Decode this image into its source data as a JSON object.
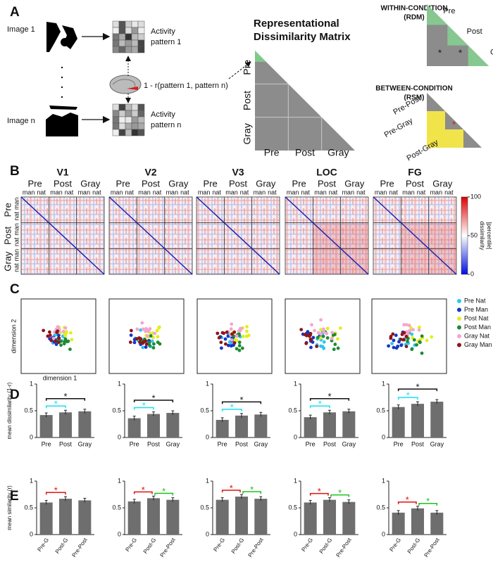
{
  "panel_labels": [
    "A",
    "B",
    "C",
    "D",
    "E"
  ],
  "schematic": {
    "image_1": "Image 1",
    "image_n": "Image n",
    "pattern_1": [
      "Activity",
      "pattern 1"
    ],
    "pattern_n": [
      "Activity",
      "pattern n"
    ],
    "correlation": "1 - r(pattern 1, pattern n)",
    "rdm_title": [
      "Representational",
      "Dissimilarity Matrix"
    ],
    "rdm_conditions": [
      "Pre",
      "Post",
      "Gray"
    ],
    "within": {
      "title": [
        "WITHIN-CONDITION",
        "(RDM)"
      ],
      "labels": [
        "Pre",
        "Post",
        "Gray"
      ],
      "stars": [
        "*",
        "*"
      ]
    },
    "between": {
      "title": [
        "BETWEEN-CONDITION",
        "(RSM)"
      ],
      "labels": [
        "Pre-Post",
        "Pre-Gray",
        "Post-Gray"
      ],
      "star": "*"
    }
  },
  "rdm": {
    "regions": [
      "V1",
      "V2",
      "V3",
      "LOC",
      "FG"
    ],
    "conditions": [
      "Pre",
      "Post",
      "Gray"
    ],
    "subconditions": [
      "man",
      "nat"
    ],
    "colorbar": {
      "lim": [
        0,
        100
      ],
      "ticks": [
        0,
        50,
        100
      ],
      "label": [
        "dissimilarity",
        "[percentile]"
      ]
    }
  },
  "mds": {
    "xlabel": "dimension 1",
    "ylabel": "dimension 2",
    "series": [
      {
        "name": "Pre Nat",
        "color": "#2ec4f2"
      },
      {
        "name": "Pre Man",
        "color": "#1436c8"
      },
      {
        "name": "Post Nat",
        "color": "#e3ee1c"
      },
      {
        "name": "Post Man",
        "color": "#1f8a33"
      },
      {
        "name": "Gray Nat",
        "color": "#f2a6cf"
      },
      {
        "name": "Gray Man",
        "color": "#8e1616"
      }
    ]
  },
  "chart_data": [
    {
      "type": "bar",
      "ylabel": "mean dissimilarity (1-r)",
      "categories": [
        "Pre",
        "Post",
        "Gray"
      ],
      "values": [
        0.42,
        0.47,
        0.49
      ],
      "color": "#6e6e6e",
      "ylim": [
        0,
        1
      ],
      "yticks": [
        0,
        0.5,
        1
      ],
      "significance": [
        {
          "label": "*",
          "between": [
            "Pre",
            "Post"
          ],
          "color": "#19e0f0"
        },
        {
          "label": "*",
          "between": [
            "Pre",
            "Gray"
          ],
          "color": "#111111"
        }
      ]
    },
    {
      "type": "bar",
      "categories": [
        "Pre",
        "Post",
        "Gray"
      ],
      "values": [
        0.36,
        0.44,
        0.46
      ],
      "color": "#6e6e6e",
      "ylim": [
        0,
        1
      ],
      "yticks": [
        0,
        0.5,
        1
      ],
      "significance": [
        {
          "label": "*",
          "between": [
            "Pre",
            "Post"
          ],
          "color": "#19e0f0"
        },
        {
          "label": "*",
          "between": [
            "Pre",
            "Gray"
          ],
          "color": "#111111"
        }
      ]
    },
    {
      "type": "bar",
      "categories": [
        "Pre",
        "Post",
        "Gray"
      ],
      "values": [
        0.33,
        0.41,
        0.43
      ],
      "color": "#6e6e6e",
      "ylim": [
        0,
        1
      ],
      "yticks": [
        0,
        0.5,
        1
      ],
      "significance": [
        {
          "label": "*",
          "between": [
            "Pre",
            "Post"
          ],
          "color": "#19e0f0"
        },
        {
          "label": "*",
          "between": [
            "Pre",
            "Gray"
          ],
          "color": "#111111"
        }
      ]
    },
    {
      "type": "bar",
      "categories": [
        "Pre",
        "Post",
        "Gray"
      ],
      "values": [
        0.38,
        0.47,
        0.49
      ],
      "color": "#6e6e6e",
      "ylim": [
        0,
        1
      ],
      "yticks": [
        0,
        0.5,
        1
      ],
      "significance": [
        {
          "label": "*",
          "between": [
            "Pre",
            "Post"
          ],
          "color": "#19e0f0"
        },
        {
          "label": "*",
          "between": [
            "Pre",
            "Gray"
          ],
          "color": "#111111"
        }
      ]
    },
    {
      "type": "bar",
      "categories": [
        "Pre",
        "Post",
        "Gray"
      ],
      "values": [
        0.57,
        0.63,
        0.67
      ],
      "color": "#6e6e6e",
      "ylim": [
        0,
        1
      ],
      "yticks": [
        0,
        0.5,
        1
      ],
      "significance": [
        {
          "label": "*",
          "between": [
            "Pre",
            "Post"
          ],
          "color": "#19e0f0"
        },
        {
          "label": "*",
          "between": [
            "Pre",
            "Gray"
          ],
          "color": "#111111"
        }
      ]
    },
    {
      "type": "bar",
      "ylabel": "mean similarity (r)",
      "categories": [
        "Pre-G",
        "Post-G",
        "Pre-Post"
      ],
      "values": [
        0.6,
        0.67,
        0.64
      ],
      "color": "#6e6e6e",
      "ylim": [
        0,
        1
      ],
      "yticks": [
        0,
        0.5,
        1
      ],
      "significance": [
        {
          "label": "*",
          "between": [
            "Pre-G",
            "Post-G"
          ],
          "color": "#e01010"
        }
      ]
    },
    {
      "type": "bar",
      "categories": [
        "Pre-G",
        "Post-G",
        "Pre-Post"
      ],
      "values": [
        0.62,
        0.68,
        0.65
      ],
      "color": "#6e6e6e",
      "ylim": [
        0,
        1
      ],
      "yticks": [
        0,
        0.5,
        1
      ],
      "significance": [
        {
          "label": "*",
          "between": [
            "Pre-G",
            "Post-G"
          ],
          "color": "#e01010"
        },
        {
          "label": "*",
          "between": [
            "Post-G",
            "Pre-Post"
          ],
          "color": "#20c020"
        }
      ]
    },
    {
      "type": "bar",
      "categories": [
        "Pre-G",
        "Post-G",
        "Pre-Post"
      ],
      "values": [
        0.65,
        0.71,
        0.67
      ],
      "color": "#6e6e6e",
      "ylim": [
        0,
        1
      ],
      "yticks": [
        0,
        0.5,
        1
      ],
      "significance": [
        {
          "label": "*",
          "between": [
            "Pre-G",
            "Post-G"
          ],
          "color": "#e01010"
        },
        {
          "label": "*",
          "between": [
            "Post-G",
            "Pre-Post"
          ],
          "color": "#20c020"
        }
      ]
    },
    {
      "type": "bar",
      "categories": [
        "Pre-G",
        "Post-G",
        "Pre-Post"
      ],
      "values": [
        0.6,
        0.65,
        0.61
      ],
      "color": "#6e6e6e",
      "ylim": [
        0,
        1
      ],
      "yticks": [
        0,
        0.5,
        1
      ],
      "significance": [
        {
          "label": "*",
          "between": [
            "Pre-G",
            "Post-G"
          ],
          "color": "#e01010"
        },
        {
          "label": "*",
          "between": [
            "Post-G",
            "Pre-Post"
          ],
          "color": "#20c020"
        }
      ]
    },
    {
      "type": "bar",
      "categories": [
        "Pre-G",
        "Post-G",
        "Pre-Post"
      ],
      "values": [
        0.41,
        0.49,
        0.41
      ],
      "color": "#6e6e6e",
      "ylim": [
        0,
        1
      ],
      "yticks": [
        0,
        0.5,
        1
      ],
      "significance": [
        {
          "label": "*",
          "between": [
            "Pre-G",
            "Post-G"
          ],
          "color": "#e01010"
        },
        {
          "label": "*",
          "between": [
            "Post-G",
            "Pre-Post"
          ],
          "color": "#20c020"
        }
      ]
    }
  ]
}
